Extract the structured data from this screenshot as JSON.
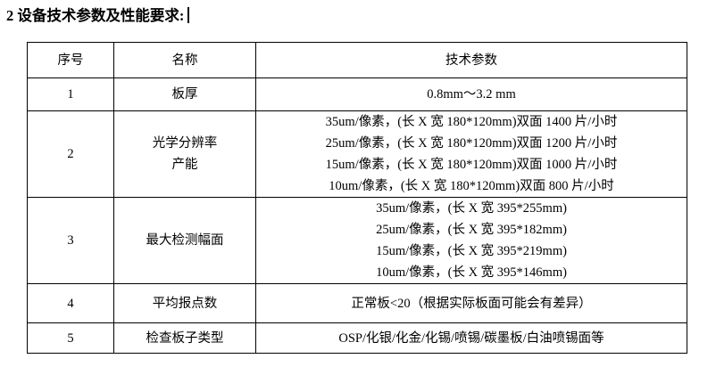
{
  "page": {
    "title": "2 设备技术参数及性能要求:"
  },
  "table": {
    "headers": [
      "序号",
      "名称",
      "技术参数"
    ],
    "rows": [
      {
        "no": "1",
        "name_lines": [
          "板厚"
        ],
        "param_lines": [
          "0.8mm～3.2 mm"
        ]
      },
      {
        "no": "2",
        "name_lines": [
          "光学分辨率",
          "产能"
        ],
        "param_lines": [
          "35um/像素，(长 X 宽 180*120mm)双面 1400 片/小时",
          "25um/像素，(长 X 宽 180*120mm)双面 1200 片/小时",
          "15um/像素，(长 X 宽 180*120mm)双面 1000 片/小时",
          "10um/像素，(长 X 宽 180*120mm)双面 800 片/小时"
        ]
      },
      {
        "no": "3",
        "name_lines": [
          "最大检测幅面"
        ],
        "param_lines": [
          "35um/像素，(长 X 宽 395*255mm)",
          "25um/像素，(长 X 宽 395*182mm)",
          "15um/像素，(长 X 宽 395*219mm)",
          "10um/像素，(长 X 宽 395*146mm)"
        ]
      },
      {
        "no": "4",
        "name_lines": [
          "平均报点数"
        ],
        "param_lines": [
          "正常板<20（根据实际板面可能会有差异）"
        ]
      },
      {
        "no": "5",
        "name_lines": [
          "检查板子类型"
        ],
        "param_lines": [
          "OSP/化银/化金/化锡/喷锡/碳墨板/白油喷锡面等"
        ]
      }
    ]
  },
  "colors": {
    "text": "#000000",
    "border": "#000000",
    "background": "#ffffff"
  }
}
